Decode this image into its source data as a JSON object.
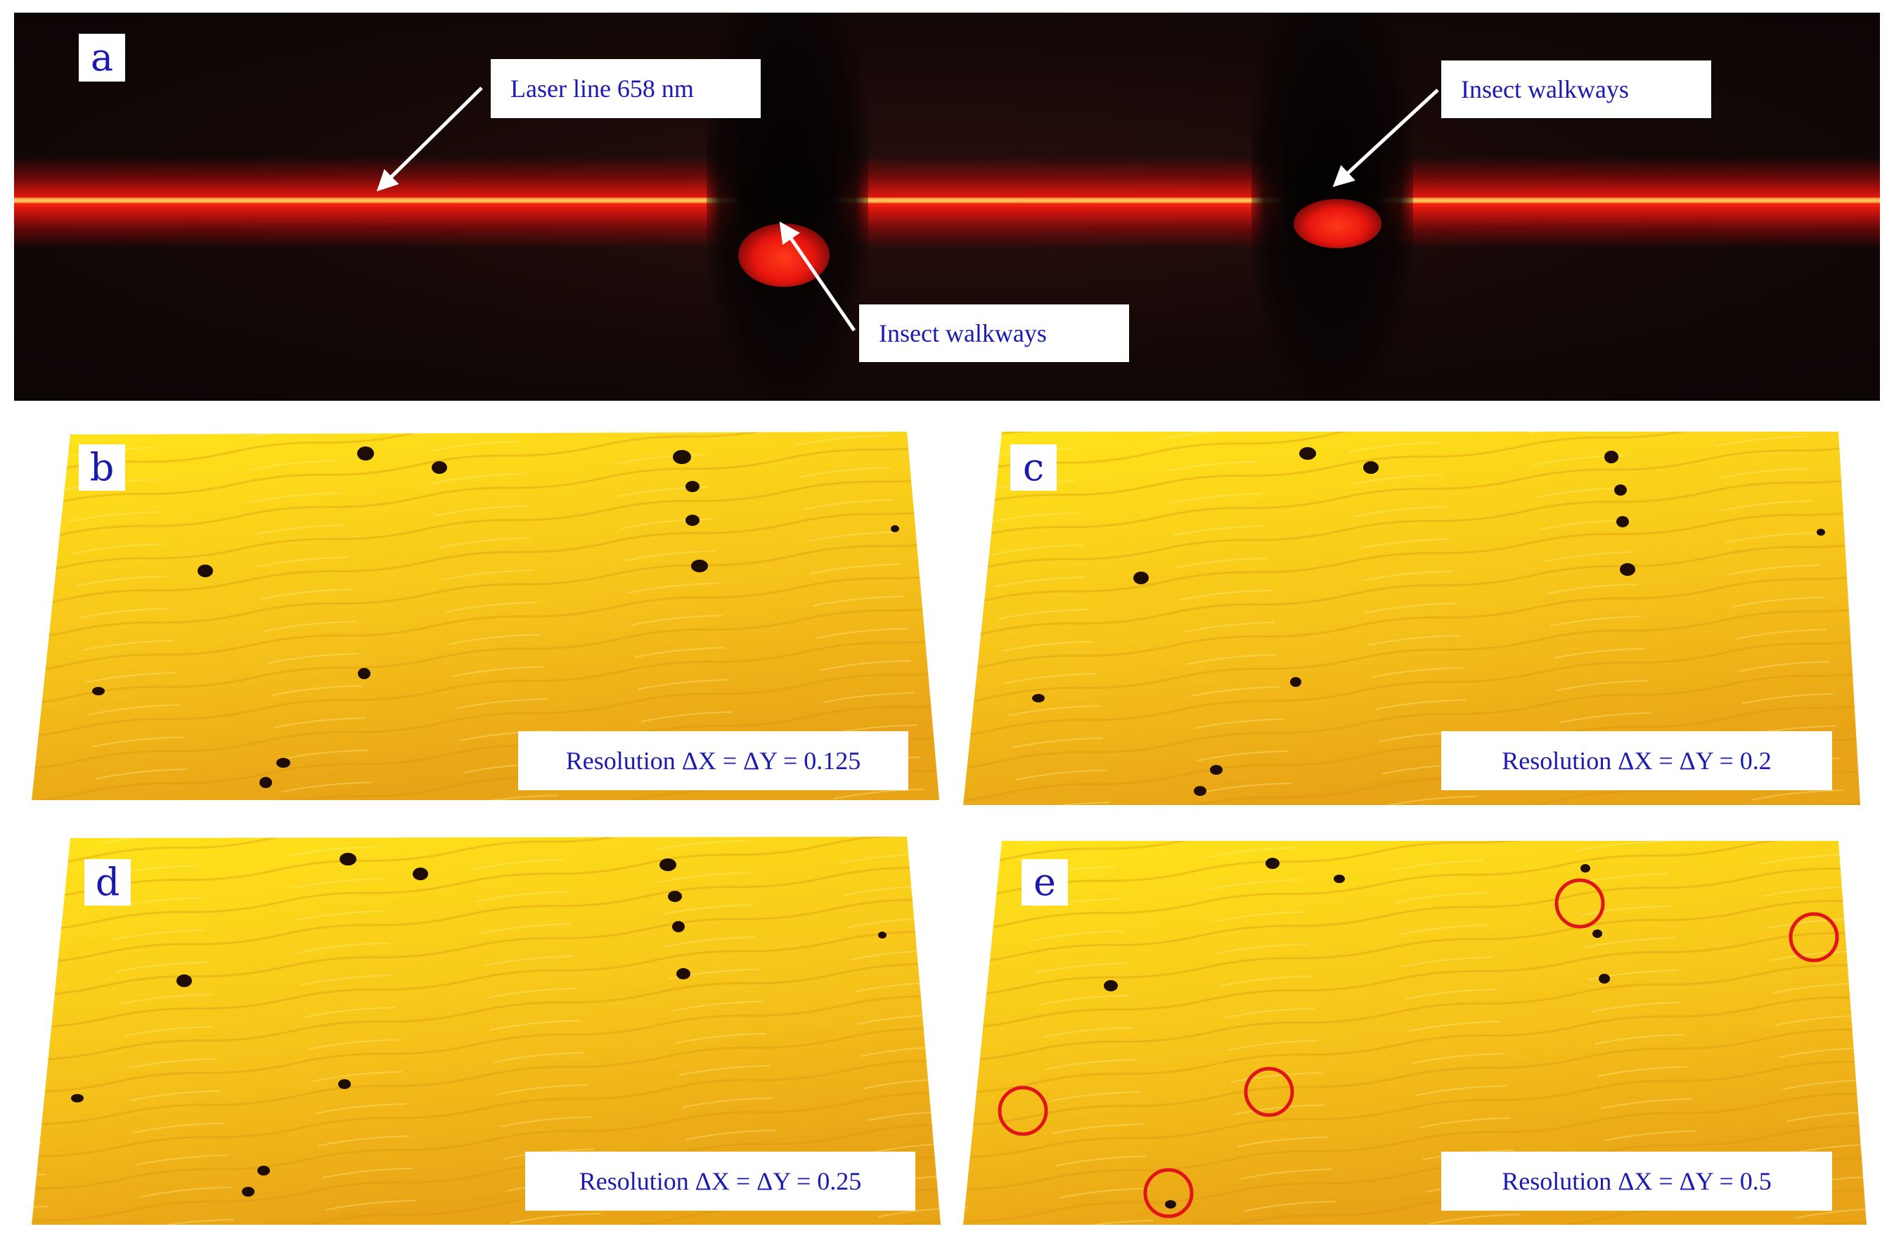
{
  "panels": {
    "a": {
      "letter": "a",
      "callouts": {
        "laser": "Laser line 658 nm",
        "walk_top": "Insect walkways",
        "walk_bottom": "Insect walkways"
      },
      "colors": {
        "laser": "#ff2a12",
        "background": "#0c0605"
      }
    },
    "b": {
      "letter": "b",
      "resolution": "Resolution ΔX = ΔY = 0.125"
    },
    "c": {
      "letter": "c",
      "resolution": "Resolution ΔX = ΔY = 0.2"
    },
    "d": {
      "letter": "d",
      "resolution": "Resolution ΔX = ΔY = 0.25"
    },
    "e": {
      "letter": "e",
      "resolution": "Resolution ΔX = ΔY = 0.5"
    }
  },
  "colors": {
    "surface": "#f5c418",
    "surface_dark": "#d9960e",
    "label_text": "#1a1ab0",
    "highlight_ring": "#e0141a"
  }
}
